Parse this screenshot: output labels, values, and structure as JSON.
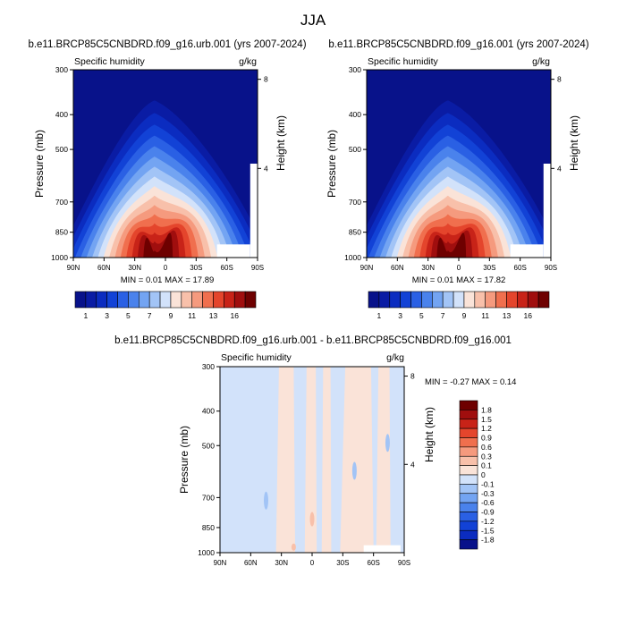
{
  "figure": {
    "title": "JJA"
  },
  "chart_data": [
    {
      "type": "heatmap",
      "title": "b.e11.BRCP85C5CNBDRD.f09_g16.urb.001 (yrs 2007-2024)",
      "left_label": "Specific humidity",
      "right_label": "g/kg",
      "ylabel": "Pressure (mb)",
      "ylabel_right": "Height (km)",
      "x_ticks": [
        "90N",
        "60N",
        "30N",
        "0",
        "30S",
        "60S",
        "90S"
      ],
      "y_ticks": [
        "300",
        "400",
        "500",
        "700",
        "850",
        "1000"
      ],
      "y_right_ticks": [
        "8",
        "4"
      ],
      "xlim": [
        90,
        -90
      ],
      "ylim": [
        1000,
        300
      ],
      "y_scale": "log",
      "stats": "MIN =  0.01  MAX =  17.89",
      "min": 0.01,
      "max": 17.89,
      "colorbar_orientation": "horizontal",
      "colorbar_labels": [
        "1",
        "3",
        "5",
        "7",
        "9",
        "11",
        "13",
        "16"
      ]
    },
    {
      "type": "heatmap",
      "title": "b.e11.BRCP85C5CNBDRD.f09_g16.001 (yrs 2007-2024)",
      "left_label": "Specific humidity",
      "right_label": "g/kg",
      "ylabel": "Pressure (mb)",
      "ylabel_right": "Height (km)",
      "x_ticks": [
        "90N",
        "60N",
        "30N",
        "0",
        "30S",
        "60S",
        "90S"
      ],
      "y_ticks": [
        "300",
        "400",
        "500",
        "700",
        "850",
        "1000"
      ],
      "y_right_ticks": [
        "8",
        "4"
      ],
      "xlim": [
        90,
        -90
      ],
      "ylim": [
        1000,
        300
      ],
      "y_scale": "log",
      "stats": "MIN =  0.01  MAX =  17.82",
      "min": 0.01,
      "max": 17.82,
      "colorbar_orientation": "horizontal",
      "colorbar_labels": [
        "1",
        "3",
        "5",
        "7",
        "9",
        "11",
        "13",
        "16"
      ]
    },
    {
      "type": "heatmap",
      "title": "b.e11.BRCP85C5CNBDRD.f09_g16.urb.001 - b.e11.BRCP85C5CNBDRD.f09_g16.001",
      "left_label": "Specific humidity",
      "right_label": "g/kg",
      "ylabel": "Pressure (mb)",
      "ylabel_right": "Height (km)",
      "x_ticks": [
        "90N",
        "60N",
        "30N",
        "0",
        "30S",
        "60S",
        "90S"
      ],
      "y_ticks": [
        "300",
        "400",
        "500",
        "700",
        "850",
        "1000"
      ],
      "y_right_ticks": [
        "8",
        "4"
      ],
      "xlim": [
        90,
        -90
      ],
      "ylim": [
        1000,
        300
      ],
      "y_scale": "log",
      "stats": "MIN = -0.27  MAX =  0.14",
      "min": -0.27,
      "max": 0.14,
      "colorbar_orientation": "vertical",
      "colorbar_labels": [
        "1.8",
        "1.5",
        "1.2",
        "0.9",
        "0.6",
        "0.3",
        "0.1",
        "0",
        "-0.1",
        "-0.3",
        "-0.6",
        "-0.9",
        "-1.2",
        "-1.5",
        "-1.8"
      ]
    }
  ],
  "colors": {
    "mean_scale": [
      "#08128a",
      "#0a1ca4",
      "#0b2cc0",
      "#1242d6",
      "#2a60e4",
      "#4a82ec",
      "#73a4f2",
      "#a2c4f6",
      "#d2e2fa",
      "#fae3d8",
      "#f8c0aa",
      "#f59a7e",
      "#f06f4e",
      "#e4452c",
      "#c82318",
      "#a00e0e",
      "#6e0000"
    ],
    "diff_scale": [
      "#6e0000",
      "#a00e0e",
      "#c82318",
      "#e4452c",
      "#f06f4e",
      "#f59a7e",
      "#f8c0aa",
      "#fae3d8",
      "#d2e2fa",
      "#a2c4f6",
      "#73a4f2",
      "#4a82ec",
      "#2a60e4",
      "#1242d6",
      "#0b2cc0",
      "#08128a"
    ],
    "diff_field_warm": "#fae3d8",
    "diff_field_cool": "#d2e2fa",
    "diff_field_blue": "#a2c4f6",
    "diff_field_red": "#f8c0aa",
    "axis": "#000000"
  }
}
